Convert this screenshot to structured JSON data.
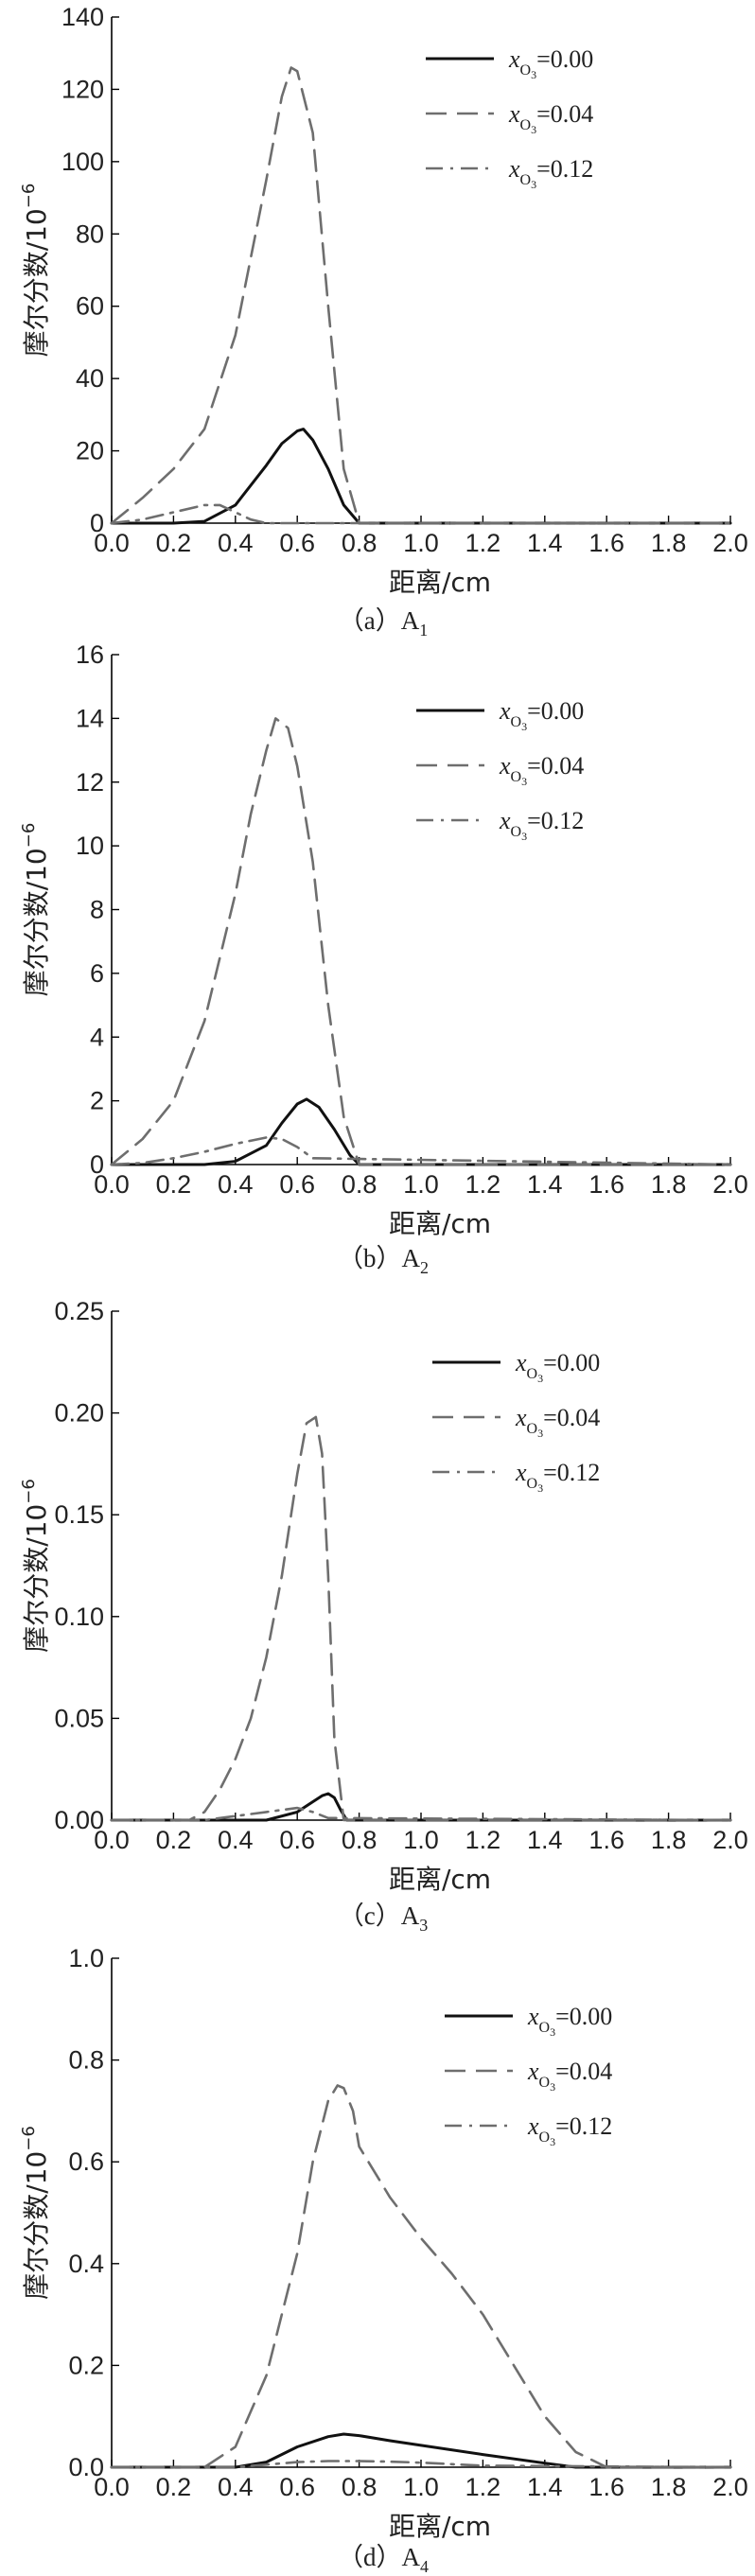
{
  "figure": {
    "legend_symbol": "x",
    "legend_subscript": "O",
    "legend_sub_subscript": "3",
    "line_color": "#111111",
    "dashed_color": "#6e6e6e",
    "axis_color": "#000000"
  },
  "chart_data": [
    {
      "type": "line",
      "panel": "a",
      "caption_prefix": "（a）A",
      "caption_sub": "1",
      "xlabel": "距离/cm",
      "ylabel": "摩尔分数/10",
      "ylabel_exp": "−6",
      "xlim": [
        0,
        2.0
      ],
      "ylim": [
        0,
        140
      ],
      "xticks": [
        0.0,
        0.2,
        0.4,
        0.6,
        0.8,
        1.0,
        1.2,
        1.4,
        1.6,
        1.8,
        2.0
      ],
      "xtick_labels": [
        "0.0",
        "0.2",
        "0.4",
        "0.6",
        "0.8",
        "1.0",
        "1.2",
        "1.4",
        "1.6",
        "1.8",
        "2.0"
      ],
      "yticks": [
        0,
        20,
        40,
        60,
        80,
        100,
        120,
        140
      ],
      "ytick_labels": [
        "0",
        "20",
        "40",
        "60",
        "80",
        "100",
        "120",
        "140"
      ],
      "legend_position": "top-right",
      "series": [
        {
          "name": "0.00",
          "style": "solid",
          "x": [
            0.0,
            0.2,
            0.3,
            0.4,
            0.5,
            0.55,
            0.6,
            0.62,
            0.65,
            0.7,
            0.75,
            0.8,
            2.0
          ],
          "y": [
            0,
            0,
            0.5,
            5,
            16,
            22,
            25.5,
            26,
            23,
            15,
            5,
            0,
            0
          ]
        },
        {
          "name": "0.04",
          "style": "dashed",
          "x": [
            0.0,
            0.1,
            0.2,
            0.3,
            0.4,
            0.5,
            0.55,
            0.58,
            0.6,
            0.65,
            0.7,
            0.75,
            0.8,
            2.0
          ],
          "y": [
            0,
            7,
            15,
            26,
            52,
            95,
            118,
            126,
            125,
            108,
            60,
            15,
            0,
            0
          ]
        },
        {
          "name": "0.12",
          "style": "dashdot",
          "x": [
            0.0,
            0.1,
            0.2,
            0.3,
            0.35,
            0.4,
            0.45,
            0.5,
            2.0
          ],
          "y": [
            0,
            1,
            3,
            5,
            5,
            3,
            1,
            0,
            0
          ]
        }
      ]
    },
    {
      "type": "line",
      "panel": "b",
      "caption_prefix": "（b）A",
      "caption_sub": "2",
      "xlabel": "距离/cm",
      "ylabel": "摩尔分数/10",
      "ylabel_exp": "−6",
      "xlim": [
        0,
        2.0
      ],
      "ylim": [
        0,
        16
      ],
      "xticks": [
        0.0,
        0.2,
        0.4,
        0.6,
        0.8,
        1.0,
        1.2,
        1.4,
        1.6,
        1.8,
        2.0
      ],
      "xtick_labels": [
        "0.0",
        "0.2",
        "0.4",
        "0.6",
        "0.8",
        "1.0",
        "1.2",
        "1.4",
        "1.6",
        "1.8",
        "2.0"
      ],
      "yticks": [
        0,
        2,
        4,
        6,
        8,
        10,
        12,
        14,
        16
      ],
      "ytick_labels": [
        "0",
        "2",
        "4",
        "6",
        "8",
        "10",
        "12",
        "14",
        "16"
      ],
      "legend_position": "top-right",
      "series": [
        {
          "name": "0.00",
          "style": "solid",
          "x": [
            0.0,
            0.3,
            0.4,
            0.5,
            0.55,
            0.6,
            0.63,
            0.67,
            0.72,
            0.77,
            0.8,
            2.0
          ],
          "y": [
            0,
            0,
            0.1,
            0.6,
            1.3,
            1.9,
            2.05,
            1.8,
            1.1,
            0.3,
            0,
            0
          ]
        },
        {
          "name": "0.04",
          "style": "dashed",
          "x": [
            0.0,
            0.1,
            0.2,
            0.3,
            0.4,
            0.45,
            0.5,
            0.53,
            0.57,
            0.6,
            0.65,
            0.7,
            0.75,
            0.8,
            2.0
          ],
          "y": [
            0,
            0.8,
            2,
            4.5,
            8.5,
            11,
            13,
            14,
            13.7,
            12.5,
            9.5,
            5,
            1.5,
            0,
            0
          ]
        },
        {
          "name": "0.12",
          "style": "dashdot",
          "x": [
            0.0,
            0.1,
            0.2,
            0.3,
            0.4,
            0.5,
            0.55,
            0.6,
            0.65,
            2.0
          ],
          "y": [
            0,
            0.05,
            0.2,
            0.4,
            0.65,
            0.85,
            0.8,
            0.55,
            0.2,
            0
          ]
        }
      ]
    },
    {
      "type": "line",
      "panel": "c",
      "caption_prefix": "（c）A",
      "caption_sub": "3",
      "xlabel": "距离/cm",
      "ylabel": "摩尔分数/10",
      "ylabel_exp": "−6",
      "xlim": [
        0,
        2.0
      ],
      "ylim": [
        0,
        0.25
      ],
      "xticks": [
        0.0,
        0.2,
        0.4,
        0.6,
        0.8,
        1.0,
        1.2,
        1.4,
        1.6,
        1.8,
        2.0
      ],
      "xtick_labels": [
        "0.0",
        "0.2",
        "0.4",
        "0.6",
        "0.8",
        "1.0",
        "1.2",
        "1.4",
        "1.6",
        "1.8",
        "2.0"
      ],
      "yticks": [
        0,
        0.05,
        0.1,
        0.15,
        0.2,
        0.25
      ],
      "ytick_labels": [
        "0.00",
        "0.05",
        "0.10",
        "0.15",
        "0.20",
        "0.25"
      ],
      "legend_position": "top-right",
      "series": [
        {
          "name": "0.00",
          "style": "solid",
          "x": [
            0.0,
            0.5,
            0.6,
            0.65,
            0.68,
            0.7,
            0.72,
            0.74,
            0.76,
            2.0
          ],
          "y": [
            0,
            0,
            0.004,
            0.009,
            0.012,
            0.013,
            0.011,
            0.005,
            0,
            0
          ]
        },
        {
          "name": "0.04",
          "style": "dashed",
          "x": [
            0.0,
            0.25,
            0.3,
            0.35,
            0.4,
            0.45,
            0.5,
            0.55,
            0.6,
            0.63,
            0.66,
            0.68,
            0.7,
            0.72,
            0.75,
            2.0
          ],
          "y": [
            0,
            0,
            0.004,
            0.015,
            0.03,
            0.05,
            0.08,
            0.12,
            0.17,
            0.195,
            0.198,
            0.18,
            0.12,
            0.04,
            0,
            0
          ]
        },
        {
          "name": "0.12",
          "style": "dashdot",
          "x": [
            0.0,
            0.3,
            0.4,
            0.5,
            0.6,
            0.65,
            0.7,
            2.0
          ],
          "y": [
            0,
            0,
            0.002,
            0.004,
            0.006,
            0.004,
            0.001,
            0
          ]
        }
      ]
    },
    {
      "type": "line",
      "panel": "d",
      "caption_prefix": "（d）A",
      "caption_sub": "4",
      "xlabel": "距离/cm",
      "ylabel": "摩尔分数/10",
      "ylabel_exp": "−6",
      "xlim": [
        0,
        2.0
      ],
      "ylim": [
        0,
        1.0
      ],
      "xticks": [
        0.0,
        0.2,
        0.4,
        0.6,
        0.8,
        1.0,
        1.2,
        1.4,
        1.6,
        1.8,
        2.0
      ],
      "xtick_labels": [
        "0.0",
        "0.2",
        "0.4",
        "0.6",
        "0.8",
        "1.0",
        "1.2",
        "1.4",
        "1.6",
        "1.8",
        "2.0"
      ],
      "yticks": [
        0,
        0.2,
        0.4,
        0.6,
        0.8,
        1.0
      ],
      "ytick_labels": [
        "0.0",
        "0.2",
        "0.4",
        "0.6",
        "0.8",
        "1.0"
      ],
      "legend_position": "top-right",
      "series": [
        {
          "name": "0.00",
          "style": "solid",
          "x": [
            0.0,
            0.4,
            0.5,
            0.6,
            0.7,
            0.75,
            0.8,
            0.9,
            1.0,
            1.2,
            1.4,
            1.5,
            2.0
          ],
          "y": [
            0,
            0,
            0.01,
            0.04,
            0.06,
            0.065,
            0.062,
            0.052,
            0.043,
            0.025,
            0.008,
            0,
            0
          ]
        },
        {
          "name": "0.04",
          "style": "dashed",
          "x": [
            0.0,
            0.3,
            0.4,
            0.5,
            0.6,
            0.65,
            0.7,
            0.73,
            0.75,
            0.78,
            0.8,
            0.9,
            1.0,
            1.1,
            1.2,
            1.3,
            1.4,
            1.5,
            1.6,
            2.0
          ],
          "y": [
            0,
            0,
            0.04,
            0.18,
            0.42,
            0.6,
            0.72,
            0.75,
            0.745,
            0.7,
            0.63,
            0.53,
            0.45,
            0.38,
            0.3,
            0.2,
            0.1,
            0.03,
            0,
            0
          ]
        },
        {
          "name": "0.12",
          "style": "dashdot",
          "x": [
            0.0,
            0.4,
            0.5,
            0.6,
            0.7,
            0.8,
            0.9,
            1.0,
            1.1,
            1.2,
            2.0
          ],
          "y": [
            0,
            0,
            0.005,
            0.01,
            0.012,
            0.012,
            0.011,
            0.009,
            0.006,
            0.003,
            0
          ]
        }
      ]
    }
  ]
}
